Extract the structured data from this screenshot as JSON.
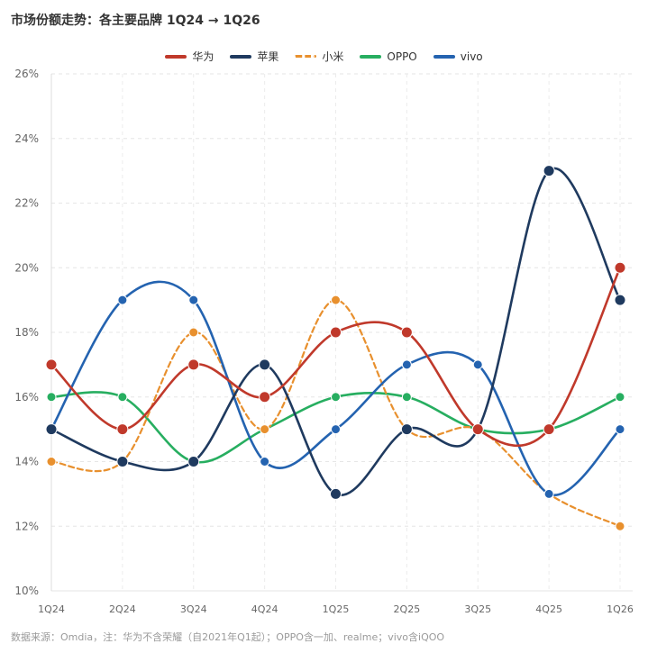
{
  "title": "市场份额走势：各主要品牌 1Q24 → 1Q26",
  "source": "数据来源：Omdia，注：华为不含荣耀（自2021年Q1起）；OPPO含一加、realme；vivo含iQOO",
  "chart_data": {
    "type": "line",
    "title": "市场份额走势：各主要品牌 1Q24 → 1Q26",
    "categories": [
      "1Q24",
      "2Q24",
      "3Q24",
      "4Q24",
      "1Q25",
      "2Q25",
      "3Q25",
      "4Q25",
      "1Q26"
    ],
    "ylim": [
      10,
      26
    ],
    "yticks": [
      "10%",
      "12%",
      "14%",
      "16%",
      "18%",
      "20%",
      "22%",
      "24%",
      "26%"
    ],
    "grid": true,
    "legend_position": "top",
    "smooth": true,
    "series": [
      {
        "name": "华为",
        "color": "#c0392b",
        "dashed": false,
        "values": [
          17,
          15,
          17,
          16,
          18,
          18,
          15,
          15,
          20
        ]
      },
      {
        "name": "苹果",
        "color": "#1f3a5f",
        "dashed": false,
        "values": [
          15,
          14,
          14,
          17,
          13,
          15,
          15,
          23,
          19
        ]
      },
      {
        "name": "小米",
        "color": "#e8902e",
        "dashed": true,
        "values": [
          14,
          14,
          18,
          15,
          19,
          15,
          15,
          13,
          12
        ]
      },
      {
        "name": "OPPO",
        "color": "#27ae60",
        "dashed": false,
        "values": [
          16,
          16,
          14,
          15,
          16,
          16,
          15,
          15,
          16
        ]
      },
      {
        "name": "vivo",
        "color": "#2463b0",
        "dashed": false,
        "values": [
          15,
          19,
          19,
          14,
          15,
          17,
          17,
          13,
          15
        ]
      }
    ]
  }
}
